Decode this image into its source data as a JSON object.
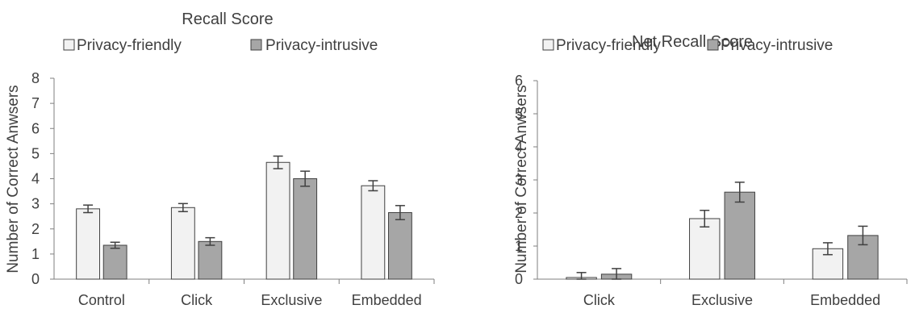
{
  "colors": {
    "privacy_friendly": "#f2f2f2",
    "privacy_intrusive": "#a6a6a6",
    "bar_stroke": "#404040",
    "axis": "#7f7f7f",
    "error_bar": "#404040"
  },
  "chart_data": [
    {
      "type": "bar",
      "title": "Recall Score",
      "ylabel": "Number of Correct Anwsers",
      "xlabel": "",
      "categories": [
        "Control",
        "Click",
        "Exclusive",
        "Embedded"
      ],
      "ylim": [
        0,
        8
      ],
      "yticks": [
        "0",
        "1",
        "2",
        "3",
        "4",
        "5",
        "6",
        "7",
        "8"
      ],
      "grid": false,
      "legend_position": "top",
      "series": [
        {
          "name": "Privacy-friendly",
          "values": [
            2.8,
            2.85,
            4.65,
            3.72
          ],
          "errors": [
            0.15,
            0.16,
            0.25,
            0.2
          ]
        },
        {
          "name": "Privacy-intrusive",
          "values": [
            1.35,
            1.5,
            4.0,
            2.65
          ],
          "errors": [
            0.12,
            0.15,
            0.3,
            0.28
          ]
        }
      ]
    },
    {
      "type": "bar",
      "title": "Net Recall Score",
      "ylabel": "Number of Correct Anwsers",
      "xlabel": "",
      "categories": [
        "Click",
        "Exclusive",
        "Embedded"
      ],
      "ylim": [
        0,
        6
      ],
      "yticks": [
        "0",
        "1",
        "2",
        "3",
        "4",
        "5",
        "6"
      ],
      "grid": false,
      "legend_position": "top",
      "series": [
        {
          "name": "Privacy-friendly",
          "values": [
            0.05,
            1.83,
            0.92
          ],
          "errors": [
            0.15,
            0.25,
            0.18
          ]
        },
        {
          "name": "Privacy-intrusive",
          "values": [
            0.15,
            2.63,
            1.32
          ],
          "errors": [
            0.17,
            0.3,
            0.28
          ]
        }
      ]
    }
  ]
}
